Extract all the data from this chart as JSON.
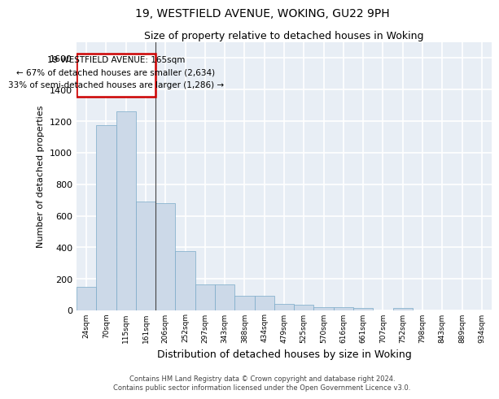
{
  "title1": "19, WESTFIELD AVENUE, WOKING, GU22 9PH",
  "title2": "Size of property relative to detached houses in Woking",
  "xlabel": "Distribution of detached houses by size in Woking",
  "ylabel": "Number of detached properties",
  "categories": [
    "24sqm",
    "70sqm",
    "115sqm",
    "161sqm",
    "206sqm",
    "252sqm",
    "297sqm",
    "343sqm",
    "388sqm",
    "434sqm",
    "479sqm",
    "525sqm",
    "570sqm",
    "616sqm",
    "661sqm",
    "707sqm",
    "752sqm",
    "798sqm",
    "843sqm",
    "889sqm",
    "934sqm"
  ],
  "values": [
    150,
    1175,
    1260,
    690,
    680,
    375,
    165,
    165,
    95,
    95,
    40,
    35,
    20,
    20,
    15,
    0,
    15,
    0,
    0,
    0,
    0
  ],
  "bar_color": "#ccd9e8",
  "bar_edge_color": "#7aaac8",
  "background_color": "#e8eef5",
  "grid_color": "#ffffff",
  "property_label": "19 WESTFIELD AVENUE: 165sqm",
  "annotation_line1": "← 67% of detached houses are smaller (2,634)",
  "annotation_line2": "33% of semi-detached houses are larger (1,286) →",
  "box_color": "#cc0000",
  "vline_x": 3.5,
  "ylim": [
    0,
    1700
  ],
  "yticks": [
    0,
    200,
    400,
    600,
    800,
    1000,
    1200,
    1400,
    1600
  ],
  "footer1": "Contains HM Land Registry data © Crown copyright and database right 2024.",
  "footer2": "Contains public sector information licensed under the Open Government Licence v3.0."
}
